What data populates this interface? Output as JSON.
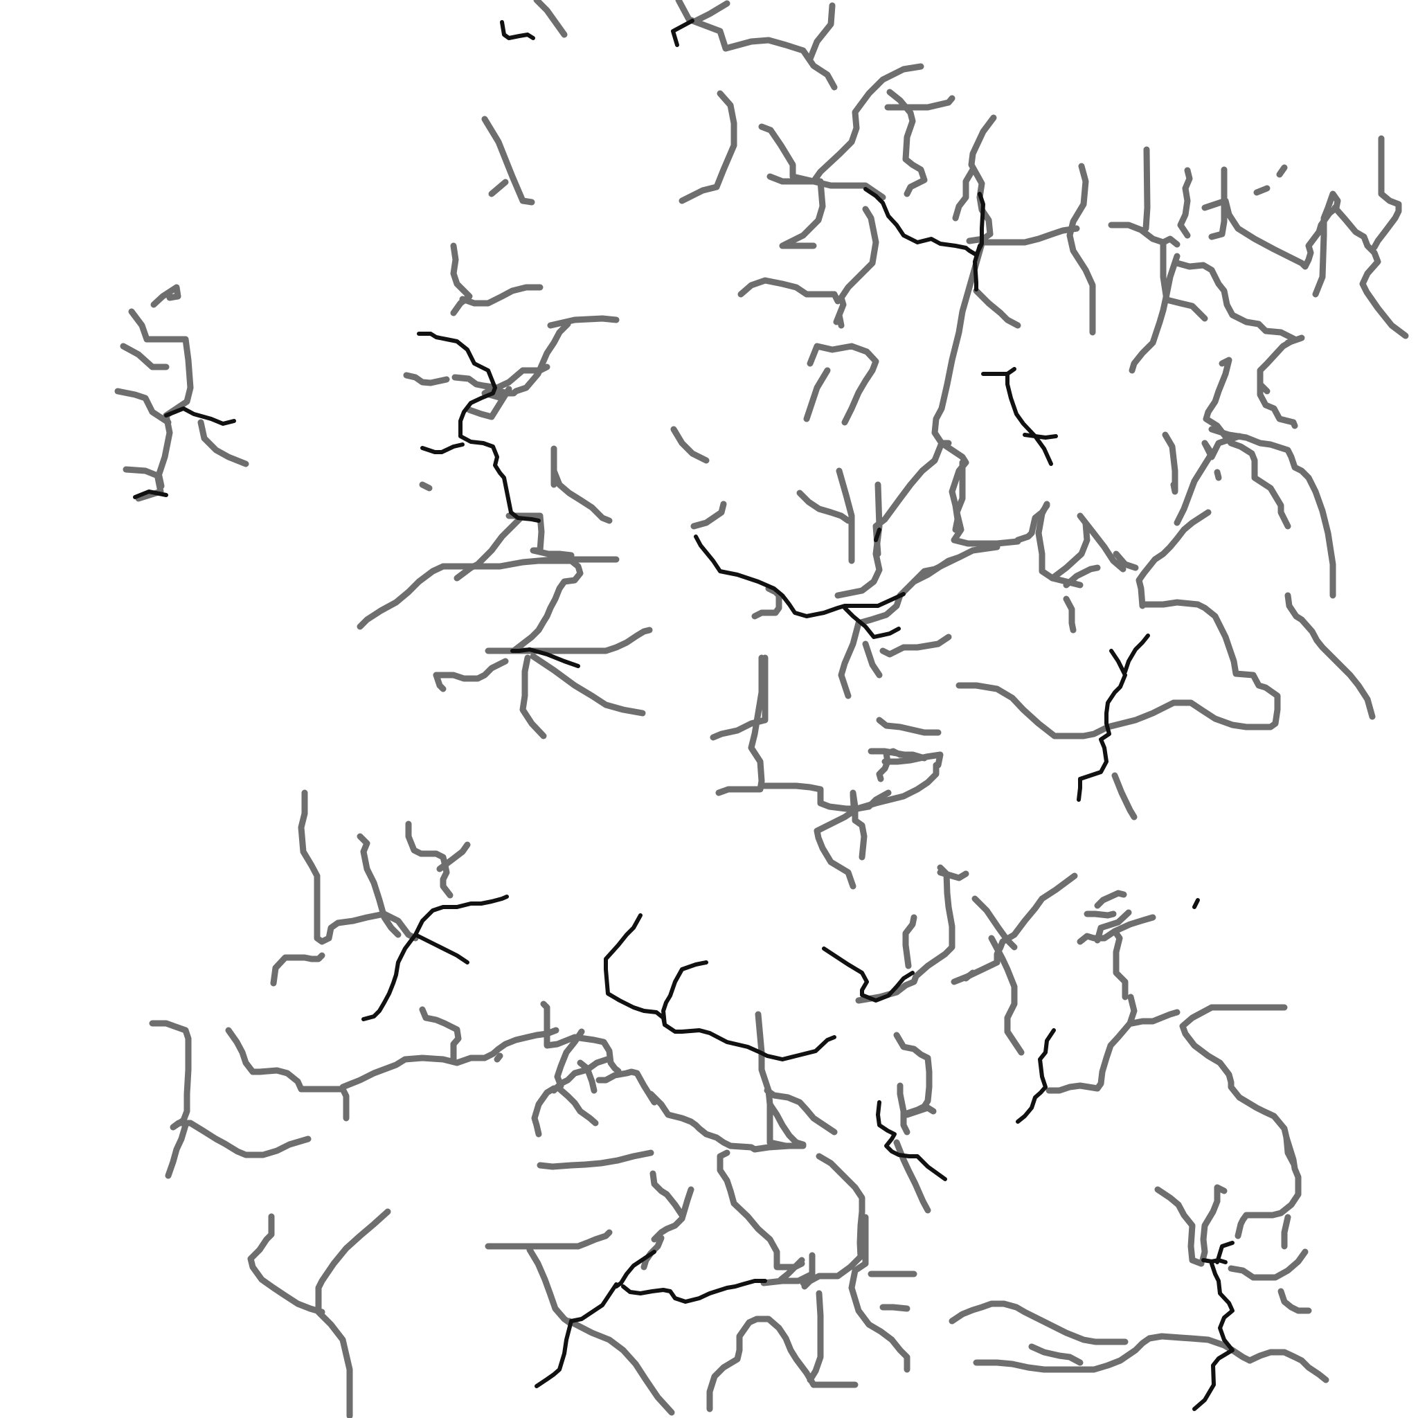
{
  "canvas": {
    "background_color": "#ffffff",
    "grey_stroke_color": "#6e6e6e",
    "black_stroke_color": "#111111"
  },
  "content": {
    "description_text": "",
    "grey_segments_visible": true,
    "black_segments_visible": true
  }
}
